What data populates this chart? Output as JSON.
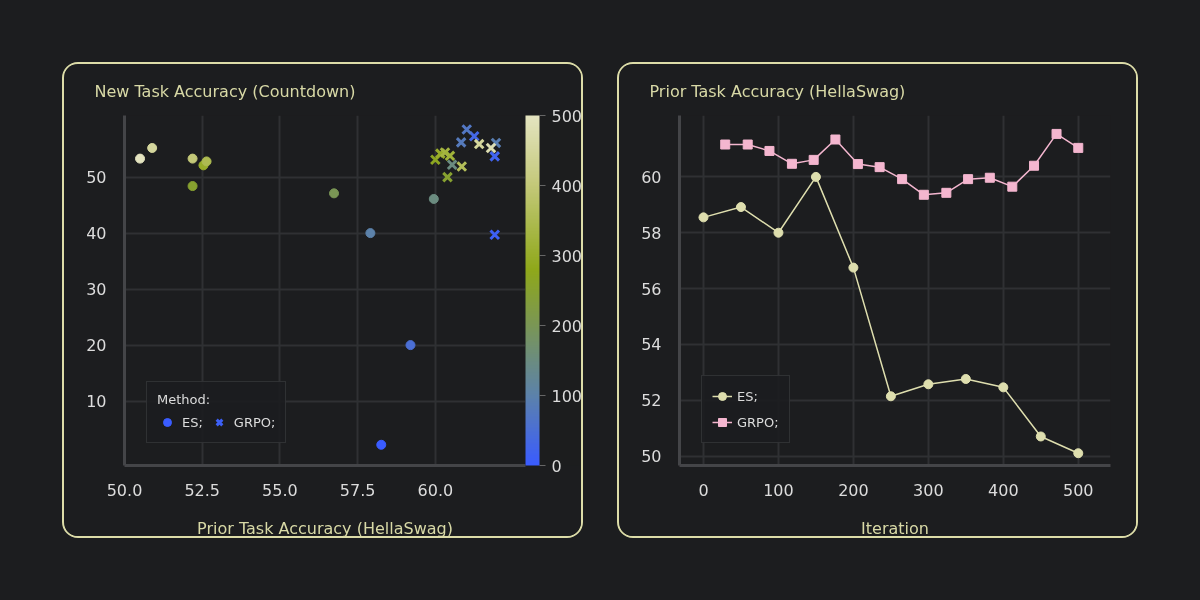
{
  "chart_data": [
    {
      "type": "scatter",
      "title": "New Task Accuracy (Countdown)",
      "xlabel": "Prior Task Accuracy (HellaSwag)",
      "legend_title": "Method:",
      "clim": [
        0,
        500
      ],
      "cticks": [
        0,
        100,
        200,
        300,
        400,
        500
      ],
      "xlim": [
        50.0,
        62.9
      ],
      "ylim": [
        -1.5,
        61
      ],
      "xticks": [
        {
          "value": 50,
          "label": "50.0"
        },
        {
          "value": 52.5,
          "label": "52.5"
        },
        {
          "value": 55,
          "label": "55.0"
        },
        {
          "value": 57.5,
          "label": "57.5"
        },
        {
          "value": 60,
          "label": "60.0"
        }
      ],
      "yticks": [
        10,
        20,
        30,
        40,
        50
      ],
      "grid": true,
      "legend": "bottom left",
      "series": [
        {
          "name": "ES;",
          "marker": "circle",
          "x": [
            58.26,
            59.2,
            57.91,
            59.95,
            56.74,
            52.19,
            52.54,
            52.64,
            52.19,
            50.89,
            50.5
          ],
          "values": [
            2.2,
            20.0,
            40.0,
            46.1,
            47.1,
            48.4,
            52.1,
            52.8,
            53.3,
            55.2,
            53.3
          ],
          "cvalues": [
            0,
            50,
            100,
            150,
            200,
            250,
            300,
            350,
            400,
            450,
            500
          ],
          "colors": [
            "#3a5cff",
            "#4b6fd4",
            "#5c82aa",
            "#6b8c80",
            "#7a9655",
            "#87a130",
            "#98ad2a",
            "#adbb51",
            "#c3c878",
            "#d4d69c",
            "#e4e4c0"
          ]
        },
        {
          "name": "GRPO;",
          "marker": "cross",
          "x": [
            61.91,
            61.91,
            61.25,
            61.01,
            60.83,
            61.95,
            60.54,
            60.39,
            60.0,
            60.16,
            60.31,
            60.47,
            60.85,
            61.41,
            61.79
          ],
          "values": [
            39.7,
            53.7,
            57.3,
            58.5,
            56.2,
            56.1,
            52.2,
            50.0,
            53.1,
            54.2,
            54.4,
            53.8,
            51.9,
            55.9,
            55.2
          ],
          "cvalues": [
            10,
            20,
            30,
            70,
            80,
            90,
            150,
            250,
            270,
            300,
            330,
            320,
            360,
            450,
            480
          ],
          "colors": [
            "#3d60f6",
            "#4164ee",
            "#4467e6",
            "#5277c4",
            "#557abb",
            "#597eb2",
            "#6b8c80",
            "#87a130",
            "#8ca621",
            "#98ad2a",
            "#a5b541",
            "#a0b339",
            "#b2bd59",
            "#d4d69c",
            "#dddeb2"
          ]
        }
      ]
    },
    {
      "type": "line",
      "title": "Prior Task Accuracy (HellaSwag)",
      "xlabel": "Iteration",
      "xlim": [
        -32,
        543
      ],
      "ylim": [
        49.66,
        62.2
      ],
      "xticks": [
        0,
        100,
        200,
        300,
        400,
        500
      ],
      "yticks": [
        50,
        52,
        54,
        56,
        58,
        60
      ],
      "grid": true,
      "legend": "bottom left",
      "series": [
        {
          "name": "ES;",
          "color": "#dedeae",
          "marker": "circle",
          "x": [
            0,
            50,
            100,
            150,
            200,
            250,
            300,
            350,
            400,
            450,
            500
          ],
          "values": [
            58.55,
            58.92,
            58.0,
            60.0,
            56.75,
            52.14,
            52.57,
            52.76,
            52.46,
            50.7,
            50.1
          ]
        },
        {
          "name": "GRPO;",
          "color": "#f4b6cf",
          "marker": "square",
          "x": [
            29,
            59,
            88,
            118,
            147,
            176,
            206,
            235,
            265,
            294,
            324,
            353,
            382,
            412,
            441,
            471,
            500
          ],
          "values": [
            61.16,
            61.16,
            60.93,
            60.47,
            60.61,
            61.34,
            60.46,
            60.35,
            59.92,
            59.36,
            59.43,
            59.92,
            59.97,
            59.65,
            60.4,
            61.54,
            61.04
          ]
        }
      ]
    }
  ]
}
